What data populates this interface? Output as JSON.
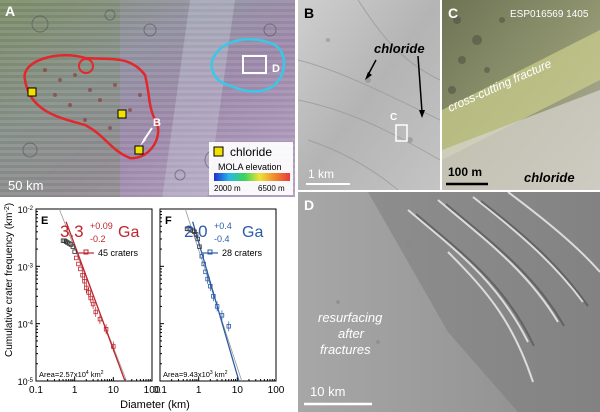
{
  "panel_a": {
    "label": "A",
    "label_b": "B",
    "label_d": "D",
    "scale": "50 km",
    "legend": {
      "chloride": "chloride",
      "mola_title": "MOLA elevation",
      "mola_min": "2000 m",
      "mola_max": "6500 m",
      "marker_color": "#f2e100",
      "outline_red": "#e0282d",
      "outline_cyan": "#38c8e8"
    }
  },
  "panel_b": {
    "label": "B",
    "chloride_label": "chloride",
    "box_label": "C",
    "scale": "1 km"
  },
  "panel_c": {
    "label": "C",
    "image_id": "ESP016569 1405",
    "fracture_label": "cross-cutting fracture",
    "chloride_label": "chloride",
    "scale": "100 m"
  },
  "panel_d": {
    "label": "D",
    "annotation_line1": "resurfacing",
    "annotation_line2": "after",
    "annotation_line3": "fractures",
    "scale": "10 km"
  },
  "plots": {
    "ylabel": "Cumulative crater frequency (km",
    "ylabel_sup": "-2",
    "ylabel_end": ")",
    "xlabel": "Diameter (km)"
  },
  "chart_data": [
    {
      "type": "scatter",
      "panel": "E",
      "age": "3.3",
      "age_plus": "+0.09",
      "age_minus": "-0.2",
      "age_unit": "Ga",
      "legend": "45 craters",
      "area_text": "Area=2.57x10",
      "area_exp": "4",
      "area_unit": " km",
      "area_unit_exp": "2",
      "color": "#c0262d",
      "xscale": "log",
      "yscale": "log",
      "xlim": [
        0.1,
        100
      ],
      "ylim": [
        1e-05,
        0.01
      ],
      "xticks": [
        "0.1",
        "1",
        "10",
        "100"
      ],
      "yticks": [
        "10",
        "10",
        "10",
        "10"
      ],
      "ytick_exps": [
        "-5",
        "-4",
        "-3",
        "-2"
      ],
      "points": [
        {
          "x": 0.5,
          "y": 0.0028
        },
        {
          "x": 0.55,
          "y": 0.0028
        },
        {
          "x": 0.6,
          "y": 0.0027
        },
        {
          "x": 0.65,
          "y": 0.0026
        },
        {
          "x": 0.72,
          "y": 0.0025
        },
        {
          "x": 0.8,
          "y": 0.0024
        },
        {
          "x": 0.9,
          "y": 0.0022
        },
        {
          "x": 1.0,
          "y": 0.0018
        },
        {
          "x": 1.1,
          "y": 0.0014
        },
        {
          "x": 1.25,
          "y": 0.0011
        },
        {
          "x": 1.4,
          "y": 0.0009
        },
        {
          "x": 1.6,
          "y": 0.0007
        },
        {
          "x": 1.8,
          "y": 0.00055
        },
        {
          "x": 2.0,
          "y": 0.00042
        },
        {
          "x": 2.3,
          "y": 0.00035
        },
        {
          "x": 2.6,
          "y": 0.00028
        },
        {
          "x": 3.0,
          "y": 0.00022
        },
        {
          "x": 3.5,
          "y": 0.00016
        },
        {
          "x": 4.5,
          "y": 0.00012
        },
        {
          "x": 6.5,
          "y": 8e-05
        },
        {
          "x": 10.0,
          "y": 4e-05
        }
      ],
      "fit_line": [
        {
          "x": 0.6,
          "y": 0.006
        },
        {
          "x": 20,
          "y": 1e-05
        }
      ],
      "production_line": [
        {
          "x": 0.4,
          "y": 0.01
        },
        {
          "x": 22,
          "y": 1e-05
        }
      ]
    },
    {
      "type": "scatter",
      "panel": "F",
      "age": "2.0",
      "age_plus": "+0.4",
      "age_minus": "-0.4",
      "age_unit": "Ga",
      "legend": "28 craters",
      "area_text": "Area=9.43x10",
      "area_exp": "3",
      "area_unit": " km",
      "area_unit_exp": "2",
      "color": "#2b5ca8",
      "xscale": "log",
      "yscale": "log",
      "xlim": [
        0.1,
        100
      ],
      "ylim": [
        1e-05,
        0.01
      ],
      "xticks": [
        "0.1",
        "1",
        "10",
        "100"
      ],
      "points": [
        {
          "x": 0.5,
          "y": 0.0045
        },
        {
          "x": 0.56,
          "y": 0.0045
        },
        {
          "x": 0.62,
          "y": 0.0044
        },
        {
          "x": 0.7,
          "y": 0.0042
        },
        {
          "x": 0.78,
          "y": 0.004
        },
        {
          "x": 0.86,
          "y": 0.0036
        },
        {
          "x": 0.95,
          "y": 0.003
        },
        {
          "x": 1.05,
          "y": 0.0022
        },
        {
          "x": 1.2,
          "y": 0.0015
        },
        {
          "x": 1.35,
          "y": 0.0011
        },
        {
          "x": 1.5,
          "y": 0.0008
        },
        {
          "x": 1.7,
          "y": 0.0006
        },
        {
          "x": 2.0,
          "y": 0.00045
        },
        {
          "x": 2.4,
          "y": 0.0003
        },
        {
          "x": 3.0,
          "y": 0.0002
        },
        {
          "x": 4.0,
          "y": 0.00014
        },
        {
          "x": 6.0,
          "y": 9e-05
        }
      ],
      "fit_line": [
        {
          "x": 0.7,
          "y": 0.006
        },
        {
          "x": 11,
          "y": 1e-05
        }
      ],
      "production_line": [
        {
          "x": 0.45,
          "y": 0.01
        },
        {
          "x": 13,
          "y": 1e-05
        }
      ]
    }
  ]
}
